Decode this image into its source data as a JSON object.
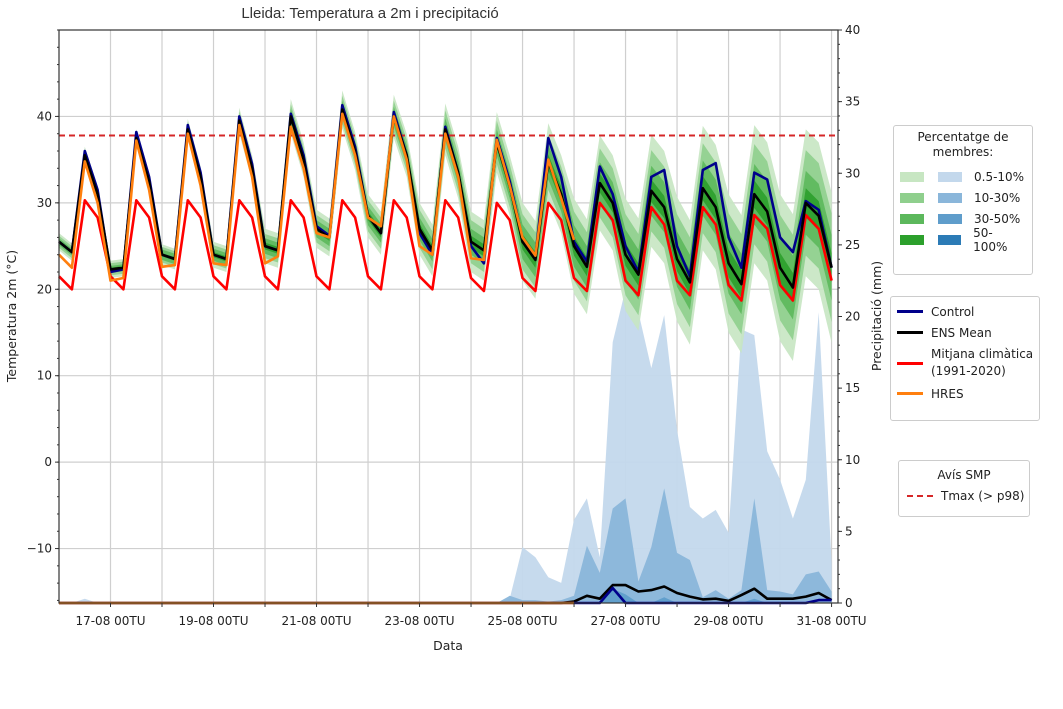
{
  "chart_data": {
    "type": "line",
    "title": "Lleida: Temperatura a 2m i precipitació",
    "xlabel": "Data",
    "ylabel_left": "Temperatura 2m (°C)",
    "ylabel_right": "Precipitació (mm)",
    "xlim": [
      "16-08 00TU",
      "31-08 03TU"
    ],
    "ylim_left": [
      -16.3,
      50
    ],
    "ylim_right": [
      0,
      40
    ],
    "yticks_left": [
      -10,
      0,
      10,
      20,
      30,
      40
    ],
    "yticks_right": [
      0,
      5,
      10,
      15,
      20,
      25,
      30,
      35,
      40
    ],
    "xtick_labels": [
      "17-08 00TU",
      "19-08 00TU",
      "21-08 00TU",
      "23-08 00TU",
      "25-08 00TU",
      "27-08 00TU",
      "29-08 00TU",
      "31-08 00TU"
    ],
    "grid": true,
    "x": [
      "16-08 00TU",
      "16-08 06TU",
      "16-08 12TU",
      "16-08 18TU",
      "17-08 00TU",
      "17-08 06TU",
      "17-08 12TU",
      "17-08 18TU",
      "18-08 00TU",
      "18-08 06TU",
      "18-08 12TU",
      "18-08 18TU",
      "19-08 00TU",
      "19-08 06TU",
      "19-08 12TU",
      "19-08 18TU",
      "20-08 00TU",
      "20-08 06TU",
      "20-08 12TU",
      "20-08 18TU",
      "21-08 00TU",
      "21-08 06TU",
      "21-08 12TU",
      "21-08 18TU",
      "22-08 00TU",
      "22-08 06TU",
      "22-08 12TU",
      "22-08 18TU",
      "23-08 00TU",
      "23-08 06TU",
      "23-08 12TU",
      "23-08 18TU",
      "24-08 00TU",
      "24-08 06TU",
      "24-08 12TU",
      "24-08 18TU",
      "25-08 00TU",
      "25-08 06TU",
      "25-08 12TU",
      "25-08 18TU",
      "26-08 00TU",
      "26-08 06TU",
      "26-08 12TU",
      "26-08 18TU",
      "27-08 00TU",
      "27-08 06TU",
      "27-08 12TU",
      "27-08 18TU",
      "28-08 00TU",
      "28-08 06TU",
      "28-08 12TU",
      "28-08 18TU",
      "29-08 00TU",
      "29-08 06TU",
      "29-08 12TU",
      "29-08 18TU",
      "30-08 00TU",
      "30-08 06TU",
      "30-08 12TU",
      "30-08 18TU",
      "31-08 00TU"
    ],
    "temperature": {
      "ens_mean": [
        25.5,
        24.3,
        35.5,
        31,
        22.3,
        22.5,
        37.5,
        32.5,
        24,
        23.5,
        38.5,
        33,
        24,
        23.5,
        39.5,
        34,
        25,
        24.5,
        40,
        35,
        27,
        26,
        40.8,
        36,
        28.5,
        26.5,
        40,
        35.5,
        27,
        24.5,
        38.5,
        33.5,
        25.5,
        24.5,
        37,
        32,
        25.5,
        23.4,
        34.7,
        31,
        25,
        22.6,
        32.3,
        30,
        24,
        21.7,
        31.4,
        29.5,
        23.5,
        20.8,
        31.7,
        29.5,
        23,
        20.6,
        31,
        29,
        22.5,
        20.2,
        30,
        28.5,
        22.5
      ],
      "control": [
        25.5,
        24.3,
        36,
        31.5,
        22,
        22.3,
        38.2,
        33,
        24,
        23.5,
        39,
        33.5,
        24,
        23.5,
        40,
        34.5,
        25,
        24.5,
        40.3,
        35.5,
        27.3,
        26.2,
        41.3,
        36.5,
        28.5,
        26.5,
        40.5,
        35.5,
        26.5,
        24,
        38.8,
        33.5,
        25,
        23,
        37.5,
        32.5,
        25.8,
        23.7,
        37.5,
        33,
        25.5,
        23.2,
        34.2,
        31,
        25,
        22,
        33,
        33.8,
        25,
        21.5,
        33.8,
        34.6,
        26,
        22.5,
        33.5,
        32.7,
        26,
        24.3,
        30.2,
        29.2,
        22.5
      ],
      "hres": [
        24,
        22.5,
        34.8,
        30,
        21,
        21.3,
        37.2,
        31.5,
        22.6,
        22.8,
        38,
        32,
        23,
        22.8,
        39,
        33,
        23,
        23.8,
        38.8,
        34,
        26.5,
        26,
        40.3,
        35.5,
        28.3,
        27.3,
        40,
        35,
        25,
        24,
        38,
        33,
        23.6,
        23.4,
        37.3,
        32,
        26,
        23.9,
        35,
        30.5,
        25.7
      ],
      "climatology": [
        21.5,
        20,
        30.3,
        28.3,
        21.5,
        20,
        30.3,
        28.3,
        21.5,
        20,
        30.3,
        28.3,
        21.5,
        20,
        30.3,
        28.3,
        21.5,
        20,
        30.3,
        28.3,
        21.5,
        20,
        30.3,
        28.3,
        21.5,
        20,
        30.3,
        28.3,
        21.5,
        20,
        30.3,
        28.3,
        21.3,
        19.8,
        30,
        28,
        21.3,
        19.8,
        30,
        28,
        21.3,
        19.8,
        30,
        28,
        21,
        19.3,
        29.5,
        27.5,
        21,
        19.3,
        29.5,
        27.5,
        20.5,
        18.7,
        28.6,
        27,
        20.5,
        18.7,
        28.6,
        27,
        21
      ],
      "tmax_threshold_p98": 37.8,
      "ens_bands_spread_by_day": {
        "days": [
          "16-08",
          "17-08",
          "18-08",
          "19-08",
          "20-08",
          "21-08",
          "22-08",
          "23-08",
          "24-08",
          "25-08",
          "26-08",
          "27-08",
          "28-08",
          "29-08",
          "30-08",
          "31-08"
        ],
        "0.5-10%": [
          1.0,
          1.0,
          1.2,
          1.5,
          2.0,
          2.2,
          2.5,
          3.0,
          3.5,
          4.5,
          5.5,
          6.5,
          7.2,
          8.0,
          8.5,
          8.7
        ],
        "10-30%": [
          0.7,
          0.7,
          0.9,
          1.1,
          1.4,
          1.6,
          1.8,
          2.2,
          2.5,
          3.2,
          4.0,
          4.7,
          5.2,
          5.8,
          6.1,
          6.3
        ],
        "30-50%": [
          0.4,
          0.4,
          0.6,
          0.7,
          0.9,
          1.0,
          1.1,
          1.3,
          1.5,
          2.0,
          2.4,
          2.9,
          3.2,
          3.5,
          3.7,
          3.8
        ],
        "50-100%": [
          0.2,
          0.2,
          0.2,
          0.3,
          0.4,
          0.4,
          0.5,
          0.6,
          0.7,
          0.9,
          1.1,
          1.3,
          1.4,
          1.6,
          1.7,
          1.7
        ]
      }
    },
    "precipitation": {
      "ens_mean": [
        0,
        0,
        0,
        0,
        0,
        0,
        0,
        0,
        0,
        0,
        0,
        0,
        0,
        0,
        0,
        0,
        0,
        0,
        0,
        0,
        0,
        0,
        0,
        0,
        0,
        0,
        0,
        0,
        0,
        0,
        0,
        0,
        0,
        0,
        0,
        0,
        0,
        0,
        0,
        0,
        0.1,
        0.5,
        0.3,
        1.25,
        1.25,
        0.8,
        0.9,
        1.15,
        0.7,
        0.45,
        0.25,
        0.3,
        0.15,
        0.55,
        1.0,
        0.3,
        0.3,
        0.3,
        0.45,
        0.7,
        0.2
      ],
      "control": [
        0,
        0,
        0,
        0,
        0,
        0,
        0,
        0,
        0,
        0,
        0,
        0,
        0,
        0,
        0,
        0,
        0,
        0,
        0,
        0,
        0,
        0,
        0,
        0,
        0,
        0,
        0,
        0,
        0,
        0,
        0,
        0,
        0,
        0,
        0,
        0,
        0,
        0,
        0,
        0,
        0,
        0,
        0,
        1.05,
        0,
        0,
        0,
        0,
        0,
        0,
        0,
        0,
        0,
        0,
        0,
        0,
        0,
        0,
        0,
        0.2,
        0.2
      ],
      "hres": [
        0,
        0,
        0,
        0,
        0,
        0,
        0,
        0,
        0,
        0,
        0,
        0,
        0,
        0,
        0,
        0,
        0,
        0,
        0,
        0,
        0,
        0,
        0,
        0,
        0,
        0,
        0,
        0,
        0,
        0,
        0,
        0,
        0,
        0,
        0,
        0,
        0,
        0,
        0,
        0,
        0
      ],
      "ens_bands_upper": {
        "0.5-10%": [
          0,
          0,
          0.3,
          0,
          0,
          0,
          0,
          0,
          0,
          0,
          0,
          0,
          0,
          0,
          0,
          0,
          0,
          0,
          0,
          0,
          0,
          0,
          0,
          0,
          0,
          0,
          0,
          0,
          0,
          0,
          0,
          0,
          0,
          0,
          0,
          0.3,
          3.9,
          3.2,
          1.8,
          1.4,
          5.8,
          7.3,
          3.2,
          18.2,
          21.9,
          20.3,
          16.4,
          20.1,
          12.1,
          6.7,
          5.9,
          6.5,
          4.9,
          19.1,
          18.7,
          10.6,
          8.6,
          5.9,
          8.6,
          20.3,
          2.8
        ],
        "10-30%": [
          0,
          0,
          0,
          0,
          0,
          0,
          0,
          0,
          0,
          0,
          0,
          0,
          0,
          0,
          0,
          0,
          0,
          0,
          0,
          0,
          0,
          0,
          0,
          0,
          0,
          0,
          0,
          0,
          0,
          0,
          0,
          0,
          0,
          0,
          0,
          0.5,
          0.2,
          0.2,
          0.1,
          0.2,
          0.5,
          4.0,
          2.1,
          6.6,
          7.3,
          1.5,
          3.9,
          8.0,
          3.5,
          3.0,
          0.4,
          0.9,
          0.3,
          0.9,
          7.3,
          0.9,
          0.8,
          0.6,
          2.0,
          2.2,
          0.8
        ],
        "30-50%": [
          0,
          0,
          0,
          0,
          0,
          0,
          0,
          0,
          0,
          0,
          0,
          0,
          0,
          0,
          0,
          0,
          0,
          0,
          0,
          0,
          0,
          0,
          0,
          0,
          0,
          0,
          0,
          0,
          0,
          0,
          0,
          0,
          0,
          0,
          0,
          0,
          0,
          0,
          0,
          0,
          0,
          0,
          0,
          1.0,
          0.6,
          0,
          0,
          0.4,
          0,
          0,
          0,
          0,
          0,
          0,
          0.3,
          0,
          0,
          0,
          0,
          0,
          0
        ],
        "50-100%": [
          0,
          0,
          0,
          0,
          0,
          0,
          0,
          0,
          0,
          0,
          0,
          0,
          0,
          0,
          0,
          0,
          0,
          0,
          0,
          0,
          0,
          0,
          0,
          0,
          0,
          0,
          0,
          0,
          0,
          0,
          0,
          0,
          0,
          0,
          0,
          0,
          0,
          0,
          0,
          0,
          0,
          0,
          0,
          0,
          0,
          0,
          0,
          0,
          0,
          0,
          0,
          0,
          0,
          0,
          0,
          0,
          0,
          0,
          0,
          0,
          0
        ]
      }
    },
    "colors": {
      "green": [
        "#c7e6c2",
        "#8fcf8d",
        "#5cb85c",
        "#2ca02c"
      ],
      "blue": [
        "#c3d8ec",
        "#8ab6da",
        "#5f9dcb",
        "#2c7bb6"
      ],
      "control": "#00008b",
      "ens_mean": "#000000",
      "climatology": "#ff0000",
      "hres": "#ff7f0e",
      "threshold": "#d62728"
    }
  },
  "legend_members": {
    "title": "Percentatge de membres:",
    "entries": [
      "0.5-10%",
      "10-30%",
      "30-50%",
      "50-100%"
    ]
  },
  "legend_lines": {
    "control": "Control",
    "ens_mean": "ENS Mean",
    "climatology_line1": "Mitjana climàtica",
    "climatology_line2": "(1991-2020)",
    "hres": "HRES"
  },
  "legend_warning": {
    "title": "Avís SMP",
    "entry": "Tmax (> p98)"
  }
}
